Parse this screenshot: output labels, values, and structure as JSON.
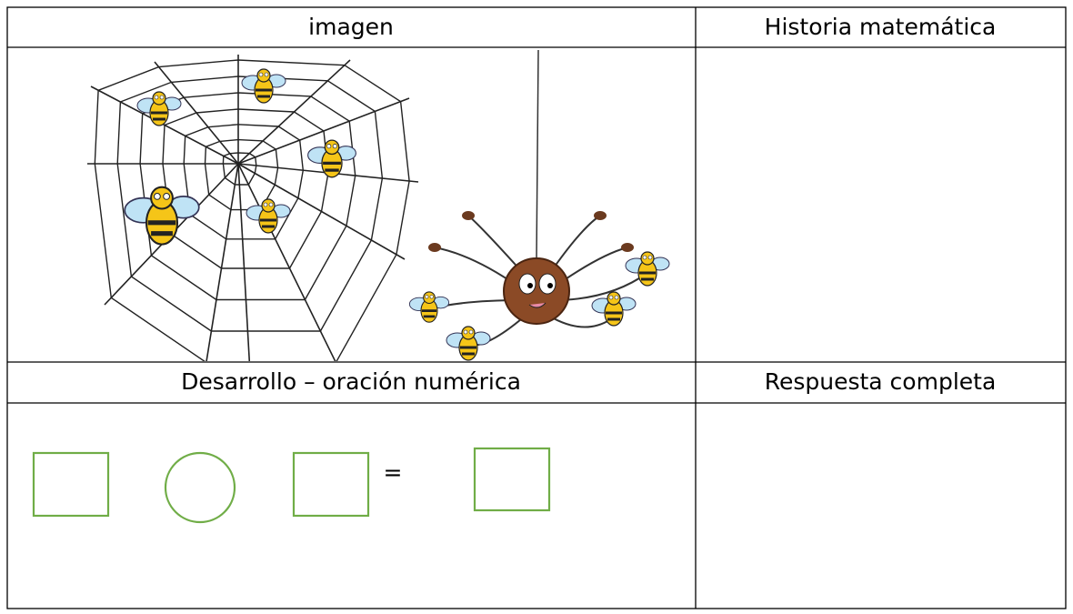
{
  "table": {
    "header": [
      "imagen",
      "Historia matemática"
    ],
    "subheader": [
      "Desarrollo – oración numérica",
      "Respuesta completa"
    ],
    "equation_sign": "="
  }
}
